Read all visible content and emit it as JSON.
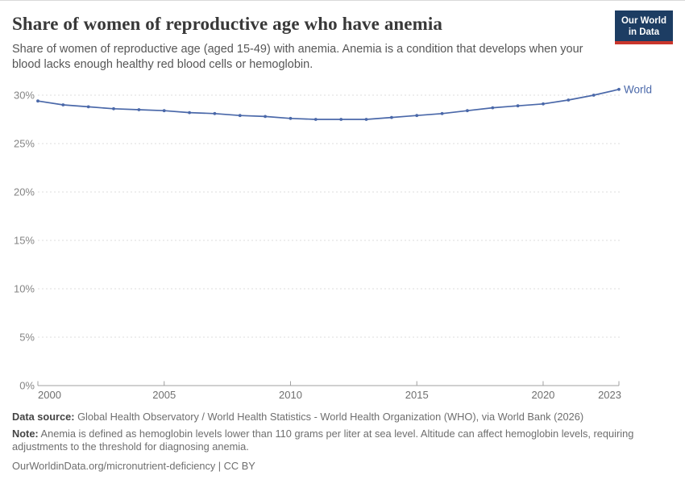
{
  "header": {
    "title": "Share of women of reproductive age who have anemia",
    "subtitle": "Share of women of reproductive age (aged 15-49) with anemia. Anemia is a condition that develops when your blood lacks enough healthy red blood cells or hemoglobin.",
    "logo": {
      "line1": "Our World",
      "line2": "in Data"
    }
  },
  "chart_data": {
    "type": "line",
    "title": "Share of women of reproductive age who have anemia",
    "x": [
      2000,
      2001,
      2002,
      2003,
      2004,
      2005,
      2006,
      2007,
      2008,
      2009,
      2010,
      2011,
      2012,
      2013,
      2014,
      2015,
      2016,
      2017,
      2018,
      2019,
      2020,
      2021,
      2022,
      2023
    ],
    "series": [
      {
        "name": "World",
        "color": "#4a68a9",
        "values": [
          29.4,
          29.0,
          28.8,
          28.6,
          28.5,
          28.4,
          28.2,
          28.1,
          27.9,
          27.8,
          27.6,
          27.5,
          27.5,
          27.5,
          27.7,
          27.9,
          28.1,
          28.4,
          28.7,
          28.9,
          29.1,
          29.5,
          30.0,
          30.6
        ]
      }
    ],
    "ylim": [
      0,
      32
    ],
    "yticks": [
      0,
      5,
      10,
      15,
      20,
      25,
      30
    ],
    "ytick_suffix": "%",
    "xticks": [
      2000,
      2005,
      2010,
      2015,
      2020,
      2023
    ],
    "grid": "horizontal-dashed",
    "legend_position": "end-of-line-label"
  },
  "footer": {
    "datasource_label": "Data source:",
    "datasource_text": " Global Health Observatory / World Health Statistics - World Health Organization (WHO), via World Bank (2026)",
    "note_label": "Note:",
    "note_text": " Anemia is defined as hemoglobin levels lower than 110 grams per liter at sea level. Altitude can affect hemoglobin levels, requiring adjustments to the threshold for diagnosing anemia.",
    "url_line": "OurWorldinData.org/micronutrient-deficiency | CC BY"
  },
  "colors": {
    "line": "#4a68a9",
    "grid": "#dddddd",
    "axis": "#a0a0a0",
    "y_tick_label": "#858585",
    "x_tick_label": "#6f6f6f",
    "series_label": "#4a68a9"
  }
}
